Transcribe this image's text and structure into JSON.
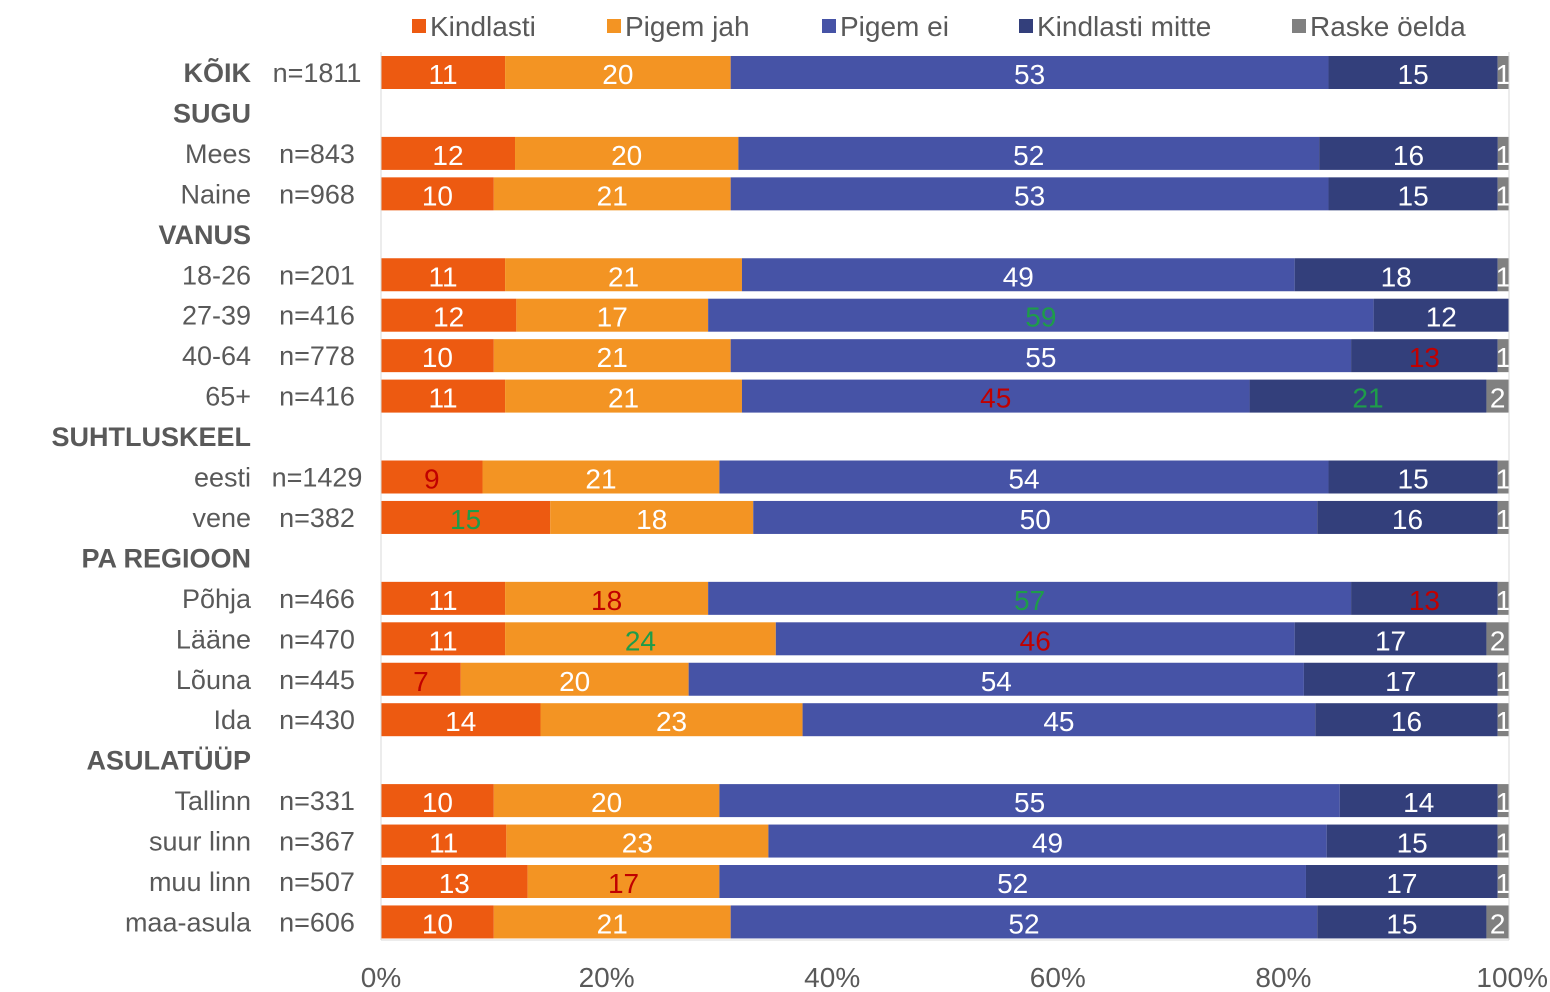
{
  "chart_data": {
    "type": "bar",
    "orientation": "horizontal",
    "stacked": true,
    "percent_stacked": true,
    "xlim": [
      0,
      100
    ],
    "x_ticks": [
      "0%",
      "20%",
      "40%",
      "60%",
      "80%",
      "100%"
    ],
    "legend": {
      "placement": "top"
    },
    "series": [
      {
        "name": "Kindlasti",
        "color": "#ED5A11"
      },
      {
        "name": "Pigem jah",
        "color": "#F39423"
      },
      {
        "name": "Pigem ei",
        "color": "#4653A6"
      },
      {
        "name": "Kindlasti mitte",
        "color": "#333F7B"
      },
      {
        "name": "Raske öelda",
        "color": "#808080"
      }
    ],
    "label_colors": {
      "white": "#FFFFFF",
      "green": "#1E9C4A",
      "red": "#C00000"
    },
    "rows": [
      {
        "kind": "row",
        "label": "KÕIK",
        "bold": true,
        "n": "n=1811",
        "values": [
          11,
          20,
          53,
          15,
          1
        ],
        "label_colors": [
          "white",
          "white",
          "white",
          "white",
          "white"
        ]
      },
      {
        "kind": "group",
        "label": "SUGU"
      },
      {
        "kind": "row",
        "label": "Mees",
        "n": "n=843",
        "values": [
          12,
          20,
          52,
          16,
          1
        ],
        "label_colors": [
          "white",
          "white",
          "white",
          "white",
          "white"
        ]
      },
      {
        "kind": "row",
        "label": "Naine",
        "n": "n=968",
        "values": [
          10,
          21,
          53,
          15,
          1
        ],
        "label_colors": [
          "white",
          "white",
          "white",
          "white",
          "white"
        ]
      },
      {
        "kind": "group",
        "label": "VANUS"
      },
      {
        "kind": "row",
        "label": "18-26",
        "n": "n=201",
        "values": [
          11,
          21,
          49,
          18,
          1
        ],
        "label_colors": [
          "white",
          "white",
          "white",
          "white",
          "white"
        ]
      },
      {
        "kind": "row",
        "label": "27-39",
        "n": "n=416",
        "values": [
          12,
          17,
          59,
          12,
          null
        ],
        "label_colors": [
          "white",
          "white",
          "green",
          "white",
          "white"
        ]
      },
      {
        "kind": "row",
        "label": "40-64",
        "n": "n=778",
        "values": [
          10,
          21,
          55,
          13,
          1
        ],
        "label_colors": [
          "white",
          "white",
          "white",
          "red",
          "white"
        ]
      },
      {
        "kind": "row",
        "label": "65+",
        "n": "n=416",
        "values": [
          11,
          21,
          45,
          21,
          2
        ],
        "label_colors": [
          "white",
          "white",
          "red",
          "green",
          "white"
        ]
      },
      {
        "kind": "group",
        "label": "SUHTLUSKEEL"
      },
      {
        "kind": "row",
        "label": "eesti",
        "n": "n=1429",
        "values": [
          9,
          21,
          54,
          15,
          1
        ],
        "label_colors": [
          "red",
          "white",
          "white",
          "white",
          "white"
        ]
      },
      {
        "kind": "row",
        "label": "vene",
        "n": "n=382",
        "values": [
          15,
          18,
          50,
          16,
          1
        ],
        "label_colors": [
          "green",
          "white",
          "white",
          "white",
          "white"
        ]
      },
      {
        "kind": "group",
        "label": "PA REGIOON"
      },
      {
        "kind": "row",
        "label": "Põhja",
        "n": "n=466",
        "values": [
          11,
          18,
          57,
          13,
          1
        ],
        "label_colors": [
          "white",
          "red",
          "green",
          "red",
          "white"
        ]
      },
      {
        "kind": "row",
        "label": "Lääne",
        "n": "n=470",
        "values": [
          11,
          24,
          46,
          17,
          2
        ],
        "label_colors": [
          "white",
          "green",
          "red",
          "white",
          "white"
        ]
      },
      {
        "kind": "row",
        "label": "Lõuna",
        "n": "n=445",
        "values": [
          7,
          20,
          54,
          17,
          1
        ],
        "label_colors": [
          "red",
          "white",
          "white",
          "white",
          "white"
        ]
      },
      {
        "kind": "row",
        "label": "Ida",
        "n": "n=430",
        "values": [
          14,
          23,
          45,
          16,
          1
        ],
        "label_colors": [
          "white",
          "white",
          "white",
          "white",
          "white"
        ]
      },
      {
        "kind": "group",
        "label": "ASULATÜÜP"
      },
      {
        "kind": "row",
        "label": "Tallinn",
        "n": "n=331",
        "values": [
          10,
          20,
          55,
          14,
          1
        ],
        "label_colors": [
          "white",
          "white",
          "white",
          "white",
          "white"
        ]
      },
      {
        "kind": "row",
        "label": "suur linn",
        "n": "n=367",
        "values": [
          11,
          23,
          49,
          15,
          1
        ],
        "label_colors": [
          "white",
          "white",
          "white",
          "white",
          "white"
        ]
      },
      {
        "kind": "row",
        "label": "muu linn",
        "n": "n=507",
        "values": [
          13,
          17,
          52,
          17,
          1
        ],
        "label_colors": [
          "white",
          "red",
          "white",
          "white",
          "white"
        ]
      },
      {
        "kind": "row",
        "label": "maa-asula",
        "n": "n=606",
        "values": [
          10,
          21,
          52,
          15,
          2
        ],
        "label_colors": [
          "white",
          "white",
          "white",
          "white",
          "white"
        ]
      }
    ]
  }
}
